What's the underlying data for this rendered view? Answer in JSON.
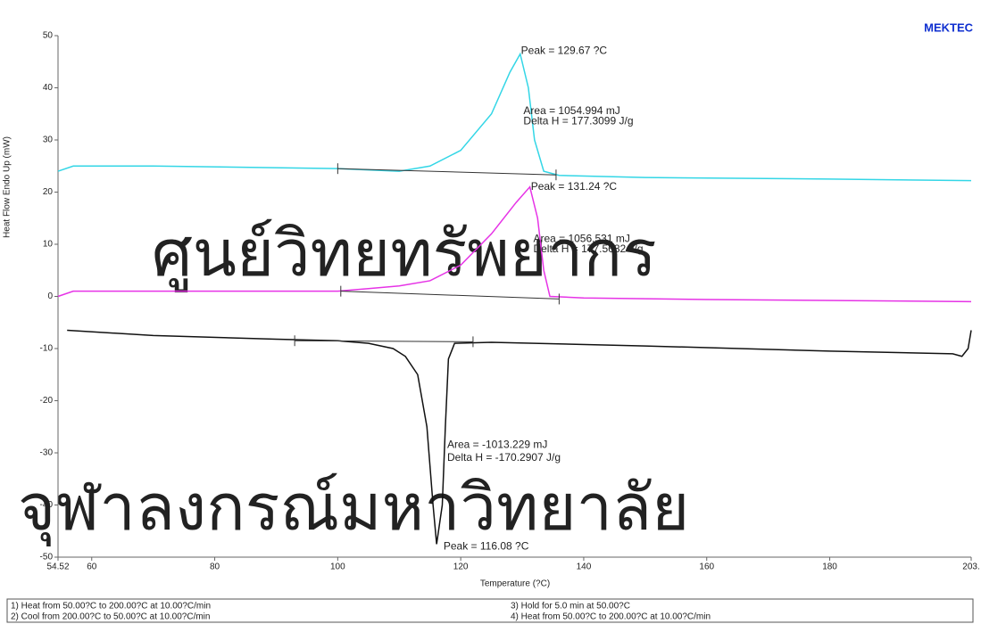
{
  "brand": "MEKTEC",
  "watermark": [
    "ศูนย์วิทยทรัพยากร",
    "จุฬาลงกรณ์มหาวิทยาลัย"
  ],
  "chart_data": {
    "type": "line",
    "x_label": "Temperature (?C)",
    "y_label": "Heat Flow Endo Up (mW)",
    "xlim": [
      54.52,
      203
    ],
    "ylim": [
      -50,
      50
    ],
    "xticks": [
      54.52,
      60,
      80,
      100,
      120,
      140,
      160,
      180,
      {
        "value": 203,
        "label": "203."
      }
    ],
    "yticks": [
      -50,
      -40,
      -30,
      -20,
      -10,
      0,
      10,
      20,
      30,
      40,
      50
    ],
    "series": [
      {
        "color": "#33d6e6",
        "x": [
          54.52,
          57,
          70,
          100,
          110,
          115,
          120,
          125,
          128,
          129.67,
          131,
          132,
          133.5,
          136,
          150,
          180,
          203
        ],
        "values": [
          24,
          25,
          25,
          24.5,
          24,
          25,
          28,
          35,
          43,
          46.5,
          40,
          30,
          24,
          23.2,
          22.8,
          22.5,
          22.2
        ]
      },
      {
        "color": "#e633e6",
        "x": [
          54.52,
          57,
          100,
          105,
          110,
          115,
          120,
          125,
          129,
          131.24,
          132.5,
          133.5,
          134.5,
          140,
          160,
          203
        ],
        "values": [
          0,
          1,
          1,
          1.5,
          2,
          3,
          6,
          12,
          18,
          21,
          15,
          5,
          0,
          -0.3,
          -0.6,
          -1
        ]
      },
      {
        "color": "#111111",
        "x": [
          56,
          70,
          90,
          100,
          105,
          109,
          111,
          113,
          114.5,
          115.5,
          116.08,
          117,
          117.5,
          118,
          119,
          125,
          150,
          180,
          200,
          201.5,
          202.5,
          203
        ],
        "values": [
          -6.5,
          -7.5,
          -8.2,
          -8.5,
          -9,
          -10,
          -11.5,
          -15,
          -25,
          -40,
          -47.5,
          -40,
          -25,
          -12,
          -9,
          -8.8,
          -9.5,
          -10.5,
          -11,
          -11.5,
          -10,
          -6.5
        ]
      }
    ],
    "baselines": [
      {
        "color": "#333333",
        "x": [
          100,
          135.5
        ],
        "values": [
          24.5,
          23.3
        ]
      },
      {
        "color": "#333333",
        "x": [
          100.5,
          136
        ],
        "values": [
          1,
          -0.5
        ]
      },
      {
        "color": "#333333",
        "x": [
          93,
          122
        ],
        "values": [
          -8.5,
          -8.7
        ]
      }
    ],
    "annotations": [
      "Peak = 129.67 ?C",
      "Area = 1054.994 mJ",
      "Delta H = 177.3099 J/g",
      "Peak = 131.24 ?C",
      "Area = 1056.531 mJ",
      "Delta H = 177.5682 J/g",
      "Area = -1013.229 mJ",
      "Delta H = -170.2907 J/g",
      "Peak = 116.08 ?C"
    ]
  },
  "method": [
    "1)  Heat from 50.00?C to 200.00?C at 10.00?C/min",
    "2)  Cool from 200.00?C to 50.00?C at 10.00?C/min",
    "3)  Hold for 5.0 min at 50.00?C",
    "4)  Heat from 50.00?C to 200.00?C at 10.00?C/min"
  ]
}
